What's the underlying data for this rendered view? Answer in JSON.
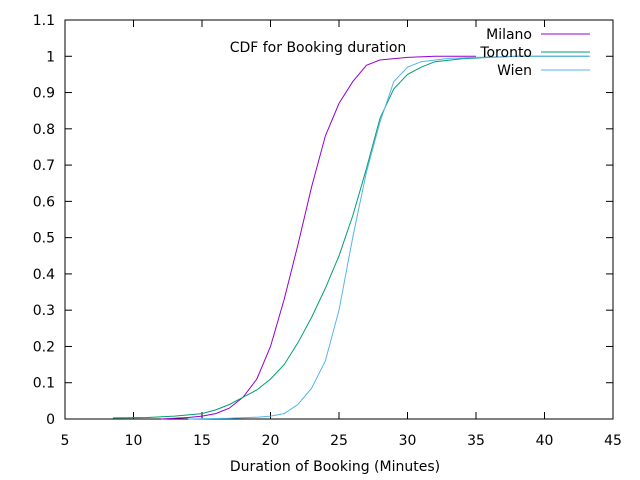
{
  "chart_data": {
    "type": "line",
    "title": "CDF for Booking duration",
    "xlabel": "Duration of Booking (Minutes)",
    "ylabel": "",
    "xlim": [
      5,
      45
    ],
    "ylim": [
      0,
      1.1
    ],
    "x_ticks": [
      "5",
      "10",
      "15",
      "20",
      "25",
      "30",
      "35",
      "40",
      "45"
    ],
    "y_ticks": [
      "0",
      "0.1",
      "0.2",
      "0.3",
      "0.4",
      "0.5",
      "0.6",
      "0.7",
      "0.8",
      "0.9",
      "1",
      "1.1"
    ],
    "grid": false,
    "legend": "top-right",
    "series": [
      {
        "name": "Milano",
        "color": "#9400d3",
        "points": [
          [
            12,
            0
          ],
          [
            14,
            0.004
          ],
          [
            15,
            0.008
          ],
          [
            16,
            0.015
          ],
          [
            17,
            0.03
          ],
          [
            18,
            0.06
          ],
          [
            19,
            0.11
          ],
          [
            20,
            0.2
          ],
          [
            21,
            0.33
          ],
          [
            22,
            0.48
          ],
          [
            23,
            0.64
          ],
          [
            24,
            0.78
          ],
          [
            25,
            0.87
          ],
          [
            26,
            0.93
          ],
          [
            27,
            0.975
          ],
          [
            28,
            0.99
          ],
          [
            30,
            0.997
          ],
          [
            32,
            1.0
          ],
          [
            35,
            1.0
          ]
        ]
      },
      {
        "name": "Toronto",
        "color": "#009e73",
        "points": [
          [
            8.5,
            0.003
          ],
          [
            11,
            0.004
          ],
          [
            13,
            0.008
          ],
          [
            15,
            0.015
          ],
          [
            16,
            0.025
          ],
          [
            17,
            0.04
          ],
          [
            18,
            0.06
          ],
          [
            19,
            0.08
          ],
          [
            20,
            0.11
          ],
          [
            21,
            0.15
          ],
          [
            22,
            0.21
          ],
          [
            23,
            0.28
          ],
          [
            24,
            0.36
          ],
          [
            25,
            0.45
          ],
          [
            26,
            0.56
          ],
          [
            27,
            0.69
          ],
          [
            28,
            0.83
          ],
          [
            29,
            0.91
          ],
          [
            30,
            0.95
          ],
          [
            31,
            0.97
          ],
          [
            32,
            0.985
          ],
          [
            34,
            0.993
          ],
          [
            36,
            0.997
          ],
          [
            38,
            1.0
          ],
          [
            43.3,
            1.0
          ]
        ]
      },
      {
        "name": "Wien",
        "color": "#56b4e9",
        "points": [
          [
            14,
            0
          ],
          [
            17,
            0.002
          ],
          [
            19,
            0.005
          ],
          [
            20,
            0.008
          ],
          [
            21,
            0.015
          ],
          [
            22,
            0.04
          ],
          [
            23,
            0.085
          ],
          [
            24,
            0.16
          ],
          [
            25,
            0.3
          ],
          [
            26,
            0.5
          ],
          [
            27,
            0.68
          ],
          [
            28,
            0.82
          ],
          [
            29,
            0.93
          ],
          [
            30,
            0.97
          ],
          [
            31,
            0.985
          ],
          [
            33,
            0.994
          ],
          [
            35,
            0.997
          ],
          [
            38,
            1.0
          ],
          [
            43.3,
            1.0
          ]
        ]
      }
    ]
  }
}
